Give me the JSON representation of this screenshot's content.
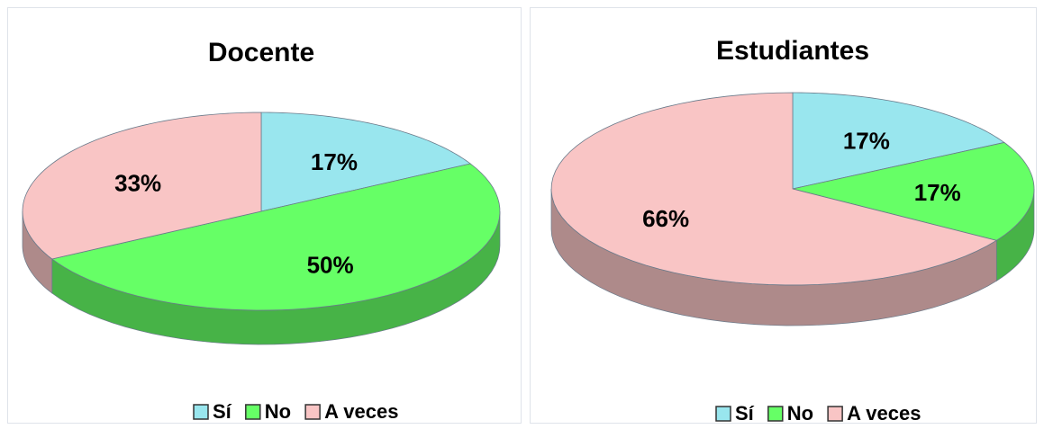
{
  "chart_data": [
    {
      "type": "pie",
      "title": "Docente",
      "categories": [
        "Sí",
        "No",
        "A veces"
      ],
      "values": [
        17,
        50,
        33
      ],
      "value_labels": [
        "17%",
        "50%",
        "33%"
      ],
      "colors": [
        "#99e6ee",
        "#66ff66",
        "#f9c5c5"
      ],
      "legend": "bottom"
    },
    {
      "type": "pie",
      "title": "Estudiantes",
      "categories": [
        "Sí",
        "No",
        "A veces"
      ],
      "values": [
        17,
        17,
        66
      ],
      "value_labels": [
        "17%",
        "17%",
        "66%"
      ],
      "colors": [
        "#99e6ee",
        "#66ff66",
        "#f9c5c5"
      ],
      "legend": "bottom"
    }
  ]
}
